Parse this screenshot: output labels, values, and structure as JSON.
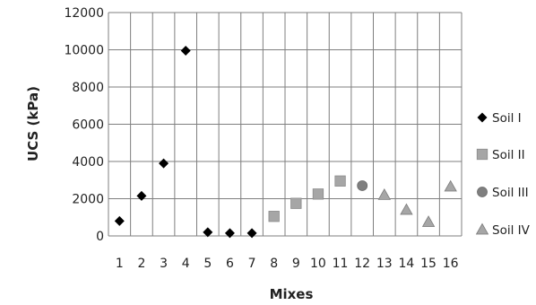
{
  "chart_data": {
    "type": "scatter",
    "xlabel": "Mixes",
    "ylabel": "UCS (kPa)",
    "xlim": [
      0.5,
      16.5
    ],
    "ylim": [
      0,
      12000
    ],
    "x_ticks": [
      "1",
      "2",
      "3",
      "4",
      "5",
      "6",
      "7",
      "8",
      "9",
      "10",
      "11",
      "12",
      "13",
      "14",
      "15",
      "16"
    ],
    "y_ticks": [
      "0",
      "2000",
      "4000",
      "6000",
      "8000",
      "10000",
      "12000"
    ],
    "grid": true,
    "legend_position": "right",
    "series": [
      {
        "name": "Soil I",
        "marker": "diamond",
        "color": "#000000",
        "points": [
          {
            "x": 1,
            "y": 800
          },
          {
            "x": 2,
            "y": 2150
          },
          {
            "x": 3,
            "y": 3900
          },
          {
            "x": 4,
            "y": 9950
          },
          {
            "x": 5,
            "y": 200
          },
          {
            "x": 6,
            "y": 150
          },
          {
            "x": 7,
            "y": 150
          }
        ]
      },
      {
        "name": "Soil II",
        "marker": "square",
        "color": "#a6a6a6",
        "points": [
          {
            "x": 8,
            "y": 1050
          },
          {
            "x": 9,
            "y": 1750
          },
          {
            "x": 10,
            "y": 2250
          },
          {
            "x": 11,
            "y": 2950
          }
        ]
      },
      {
        "name": "Soil III",
        "marker": "circle",
        "color": "#7f7f7f",
        "points": [
          {
            "x": 12,
            "y": 2700
          }
        ]
      },
      {
        "name": "Soil IV",
        "marker": "triangle",
        "color": "#a6a6a6",
        "points": [
          {
            "x": 13,
            "y": 2200
          },
          {
            "x": 14,
            "y": 1400
          },
          {
            "x": 15,
            "y": 750
          },
          {
            "x": 16,
            "y": 2650
          }
        ]
      }
    ]
  }
}
